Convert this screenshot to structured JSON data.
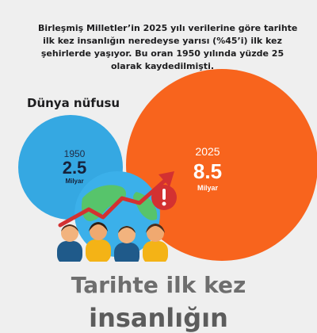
{
  "intro": {
    "lines": [
      "Birleşmiş Milletler’in 2025 yılı verilerine göre tarihte",
      "ilk kez insanlığın neredeyse yarısı (%45’i) ilk kez",
      "şehirlerde yaşıyor. Bu oran 1950 yılında yüzde 25",
      "olarak kaydedilmişti."
    ]
  },
  "population": {
    "title": "Dünya nüfusu",
    "past": {
      "year": "1950",
      "amount": "2.5",
      "unit": "Milyar"
    },
    "now": {
      "year": "2025",
      "amount": "8.5",
      "unit": "Milyar"
    }
  },
  "bottom": {
    "title": "Tarihte ilk kez",
    "subtitle": "insanlığın"
  },
  "icons": [
    "globe-icon",
    "trend-arrow-icon",
    "warning-icon",
    "people-icon"
  ],
  "colors": {
    "background": "#efefef",
    "circle_1950": "#35a8e2",
    "circle_2025": "#f8641d",
    "warning": "#d33131",
    "trend_arrow": "#d33131"
  }
}
